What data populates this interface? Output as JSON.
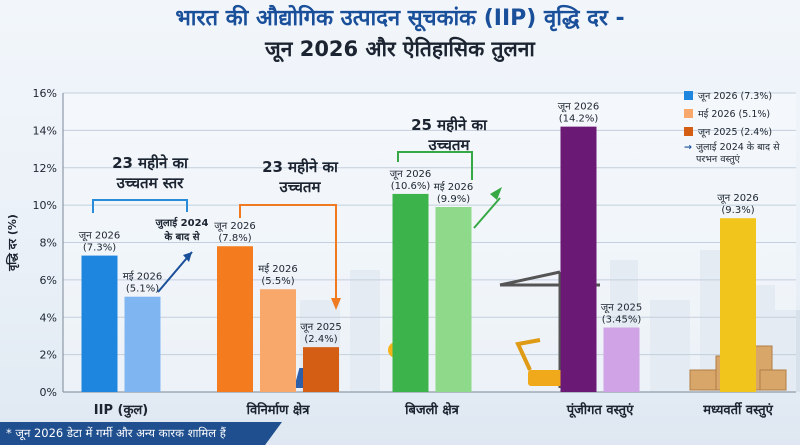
{
  "title_line1": "भारत की औद्योगिक उत्पादन सूचकांक (IIP) वृद्धि दर -",
  "title_line2": "जून 2026 और ऐतिहासिक तुलना",
  "footnote": "* जून 2026 डेटा में गर्मी और अन्य कारक शामिल हैं",
  "legend": {
    "jun2026": "जून 2026 (7.3%)",
    "may2026": "मई 2026 (5.1%)",
    "jun2025": "जून 2025 (2.4%)",
    "arrow_note": "जुलाई 2024 के बाद से परभन वस्तुएं"
  },
  "colors": {
    "iip_jun": "#1f86e0",
    "iip_may": "#7fb6f2",
    "mfg_jun": "#f57c1e",
    "mfg_may": "#f7a86a",
    "mfg_prev": "#d35e14",
    "elec_jun": "#3cb44b",
    "elec_may": "#8fd98a",
    "cap_jun": "#6a1a74",
    "cap_prev": "#cfa3e6",
    "int_jun": "#f2c51c",
    "legend_jun": "#1f86e0",
    "legend_may": "#f7a86a",
    "legend_prev": "#d35e14"
  },
  "annotations": {
    "iip": [
      "23 महीने का",
      "उच्चतम स्तर"
    ],
    "iip_arrow": [
      "जुलाई 2024",
      "के बाद से"
    ],
    "mfg": [
      "23 महीने का",
      "उच्चतम"
    ],
    "elec": [
      "25 महीने का",
      "उच्चतम"
    ]
  },
  "chart_data": {
    "type": "bar",
    "ylabel": "वृद्धि दर (%)",
    "ylim": [
      0,
      16
    ],
    "yticks": [
      "0%",
      "2%",
      "4%",
      "6%",
      "8%",
      "10%",
      "12%",
      "14%",
      "16%"
    ],
    "grid": true,
    "legend_position": "top-right",
    "categories": [
      "IIP (कुल)",
      "विनिर्माण क्षेत्र",
      "बिजली क्षेत्र",
      "पूंजीगत वस्तुएं",
      "मध्यवर्ती वस्तुएं"
    ],
    "bars": [
      {
        "category": "IIP (कुल)",
        "value": 7.3,
        "label": [
          "जून 2026",
          "(7.3%)"
        ],
        "color_key": "iip_jun"
      },
      {
        "category": "IIP (कुल)",
        "value": 5.1,
        "label": [
          "मई 2026",
          "(5.1%)"
        ],
        "color_key": "iip_may"
      },
      {
        "category": "विनिर्माण क्षेत्र",
        "value": 7.8,
        "label": [
          "जून 2026",
          "(7.8%)"
        ],
        "color_key": "mfg_jun"
      },
      {
        "category": "विनिर्माण क्षेत्र",
        "value": 5.5,
        "label": [
          "मई 2026",
          "(5.5%)"
        ],
        "color_key": "mfg_may"
      },
      {
        "category": "विनिर्माण क्षेत्र",
        "value": 2.4,
        "label": [
          "जून 2025",
          "(2.4%)"
        ],
        "color_key": "mfg_prev"
      },
      {
        "category": "बिजली क्षेत्र",
        "value": 10.6,
        "label": [
          "जून 2026",
          "(10.6%)"
        ],
        "color_key": "elec_jun"
      },
      {
        "category": "बिजली क्षेत्र",
        "value": 9.9,
        "label": [
          "मई 2026",
          "(9.9%)"
        ],
        "color_key": "elec_may"
      },
      {
        "category": "पूंजीगत वस्तुएं",
        "value": 14.2,
        "label": [
          "जून 2026",
          "(14.2%)"
        ],
        "color_key": "cap_jun"
      },
      {
        "category": "पूंजीगत वस्तुएं",
        "value": 3.45,
        "label": [
          "जून 2025",
          "(3.45%)"
        ],
        "color_key": "cap_prev"
      },
      {
        "category": "मध्यवर्ती वस्तुएं",
        "value": 9.3,
        "label": [
          "जून 2026",
          "(9.3%)"
        ],
        "color_key": "int_jun"
      }
    ]
  }
}
